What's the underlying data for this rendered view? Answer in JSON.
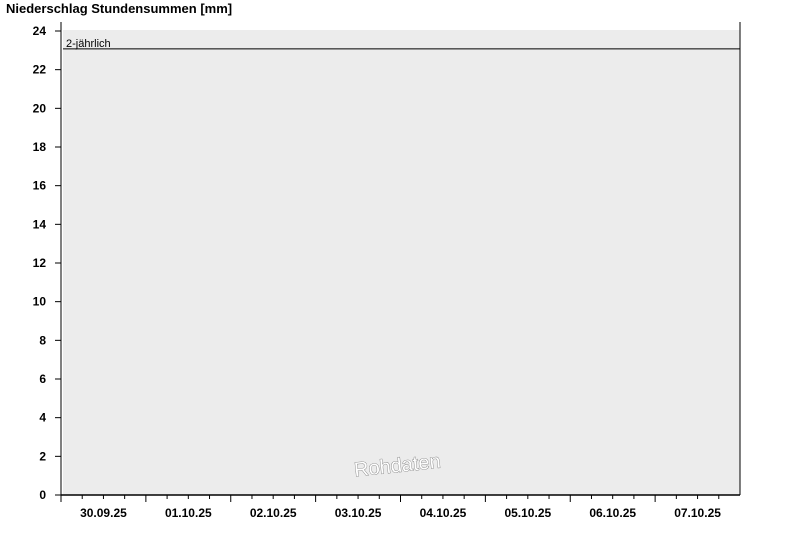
{
  "chart_data": {
    "type": "bar",
    "title": "Niederschlag Stundensummen [mm]",
    "xlabel": "",
    "ylabel": "",
    "ylim": [
      0,
      24
    ],
    "yticks": [
      0,
      2,
      4,
      6,
      8,
      10,
      12,
      14,
      16,
      18,
      20,
      22,
      24
    ],
    "categories": [
      "30.09.25",
      "01.10.25",
      "02.10.25",
      "03.10.25",
      "04.10.25",
      "05.10.25",
      "06.10.25",
      "07.10.25"
    ],
    "series": [],
    "reference_lines": [
      {
        "label": "2-jährlich",
        "value": 23
      }
    ],
    "watermark": "Rohdaten",
    "grid": false,
    "colors": {
      "plot_background": "#ececec",
      "axis": "#000000"
    }
  }
}
